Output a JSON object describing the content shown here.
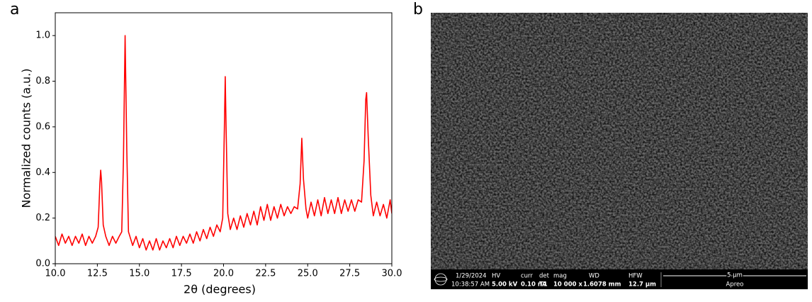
{
  "panel_labels": [
    "a",
    "b"
  ],
  "chart_data": {
    "type": "line",
    "xlabel": "2θ (degrees)",
    "ylabel": "Normalized counts (a.u.)",
    "xlim": [
      10,
      30
    ],
    "ylim": [
      0,
      1.1
    ],
    "xticks": [
      {
        "value": 10,
        "label": "10.0"
      },
      12.5,
      {
        "value": 15,
        "label": "15.0"
      },
      17.5,
      {
        "value": 20,
        "label": "20.0"
      },
      22.5,
      {
        "value": 25,
        "label": "25.0"
      },
      27.5,
      {
        "value": 30,
        "label": "30.0"
      }
    ],
    "yticks": [
      {
        "value": 0,
        "label": "0.0"
      },
      0.2,
      0.4,
      0.6,
      0.8,
      {
        "value": 1,
        "label": "1.0"
      }
    ],
    "grid": false,
    "x": [
      10.0,
      10.2,
      10.4,
      10.6,
      10.8,
      11.0,
      11.2,
      11.4,
      11.6,
      11.8,
      12.0,
      12.2,
      12.4,
      12.55,
      12.65,
      12.7,
      12.75,
      12.85,
      13.0,
      13.2,
      13.4,
      13.6,
      13.8,
      13.95,
      14.05,
      14.15,
      14.25,
      14.35,
      14.6,
      14.8,
      15.0,
      15.2,
      15.4,
      15.6,
      15.8,
      16.0,
      16.2,
      16.4,
      16.6,
      16.8,
      17.0,
      17.2,
      17.4,
      17.6,
      17.8,
      18.0,
      18.2,
      18.4,
      18.6,
      18.8,
      19.0,
      19.2,
      19.4,
      19.6,
      19.8,
      19.95,
      20.05,
      20.1,
      20.15,
      20.25,
      20.4,
      20.6,
      20.8,
      21.0,
      21.2,
      21.4,
      21.6,
      21.8,
      22.0,
      22.2,
      22.4,
      22.6,
      22.8,
      23.0,
      23.2,
      23.4,
      23.6,
      23.8,
      24.0,
      24.2,
      24.4,
      24.55,
      24.65,
      24.75,
      24.9,
      25.0,
      25.2,
      25.4,
      25.6,
      25.8,
      26.0,
      26.2,
      26.4,
      26.6,
      26.8,
      27.0,
      27.2,
      27.4,
      27.6,
      27.8,
      28.0,
      28.2,
      28.35,
      28.45,
      28.5,
      28.6,
      28.75,
      28.9,
      29.1,
      29.3,
      29.5,
      29.7,
      29.9,
      30.0
    ],
    "series": [
      {
        "color": "#ff0000",
        "values": [
          0.12,
          0.08,
          0.13,
          0.09,
          0.12,
          0.08,
          0.12,
          0.09,
          0.13,
          0.08,
          0.12,
          0.09,
          0.12,
          0.16,
          0.35,
          0.41,
          0.36,
          0.17,
          0.12,
          0.08,
          0.12,
          0.09,
          0.12,
          0.14,
          0.45,
          1.0,
          0.5,
          0.14,
          0.08,
          0.12,
          0.07,
          0.11,
          0.06,
          0.1,
          0.06,
          0.11,
          0.06,
          0.1,
          0.07,
          0.11,
          0.07,
          0.12,
          0.08,
          0.12,
          0.09,
          0.13,
          0.09,
          0.14,
          0.1,
          0.15,
          0.11,
          0.16,
          0.12,
          0.17,
          0.14,
          0.2,
          0.6,
          0.82,
          0.6,
          0.22,
          0.15,
          0.2,
          0.15,
          0.21,
          0.16,
          0.22,
          0.17,
          0.23,
          0.17,
          0.25,
          0.19,
          0.26,
          0.19,
          0.25,
          0.2,
          0.26,
          0.21,
          0.25,
          0.22,
          0.25,
          0.24,
          0.35,
          0.55,
          0.37,
          0.24,
          0.2,
          0.27,
          0.21,
          0.28,
          0.21,
          0.29,
          0.22,
          0.28,
          0.22,
          0.29,
          0.22,
          0.28,
          0.23,
          0.28,
          0.23,
          0.28,
          0.27,
          0.45,
          0.72,
          0.75,
          0.55,
          0.3,
          0.21,
          0.27,
          0.21,
          0.26,
          0.2,
          0.28,
          0.22
        ]
      }
    ]
  },
  "sem": {
    "date": "1/29/2024",
    "time": "10:38:57 AM",
    "fields": [
      {
        "label": "HV",
        "value": "5.00 kV"
      },
      {
        "label": "curr",
        "value": "0.10 nA"
      },
      {
        "label": "det",
        "value": "T1"
      },
      {
        "label": "mag",
        "value": "10 000 x"
      },
      {
        "label": "WD",
        "value": "1.6078 mm"
      },
      {
        "label": "HFW",
        "value": "12.7 µm"
      }
    ],
    "scale": "5 µm",
    "instrument": "Apreo"
  }
}
